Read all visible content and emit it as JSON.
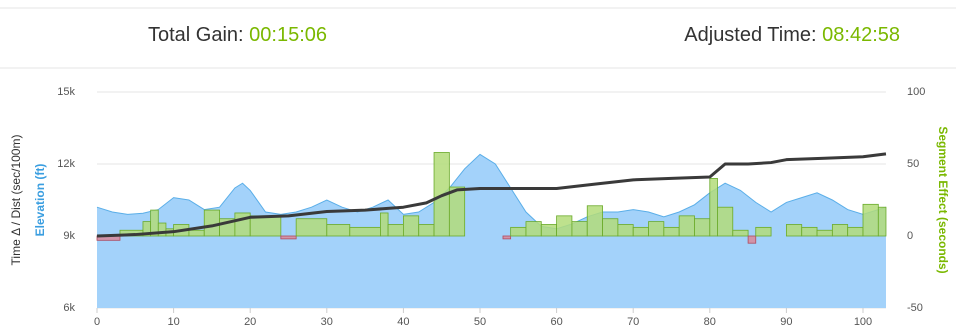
{
  "header": {
    "total_gain_label": "Total Gain:",
    "total_gain": "00:15:06",
    "adjusted_label": "Adjusted Time:",
    "adjusted_time": "08:42:58"
  },
  "chart_data": {
    "type": "combo",
    "y_label_outer": "Time Δ / Dist (sec/100m)",
    "y_label": "Elevation (ft)",
    "y2_label": "Segment Effect (seconds)",
    "xlim": [
      0,
      103
    ],
    "xticks": [
      0,
      10,
      20,
      30,
      40,
      50,
      60,
      70,
      80,
      90,
      100
    ],
    "ylim": [
      6000,
      15000
    ],
    "yticks": [
      {
        "value": 6000,
        "label": "6k"
      },
      {
        "value": 9000,
        "label": "9k"
      },
      {
        "value": 12000,
        "label": "12k"
      },
      {
        "value": 15000,
        "label": "15k"
      }
    ],
    "y2lim": [
      -50,
      100
    ],
    "y2ticks": [
      -50,
      0,
      50,
      100
    ],
    "grid": true,
    "series": [
      {
        "type": "area",
        "color": "#a3d2fa",
        "stroke": "#5aaee8",
        "x": [
          0,
          2,
          4,
          6,
          8,
          10,
          12,
          14,
          16,
          18,
          19,
          20,
          22,
          24,
          26,
          28,
          30,
          32,
          34,
          36,
          38,
          40,
          42,
          44,
          46,
          48,
          50,
          52,
          54,
          56,
          58,
          60,
          62,
          64,
          66,
          68,
          70,
          72,
          74,
          76,
          78,
          80,
          82,
          84,
          86,
          88,
          90,
          92,
          94,
          96,
          98,
          100,
          102,
          103
        ],
        "values": [
          10200,
          10000,
          9900,
          9950,
          10100,
          10600,
          10500,
          10100,
          10200,
          11000,
          11200,
          10900,
          10000,
          9900,
          10000,
          10200,
          10500,
          10200,
          10000,
          10200,
          10500,
          9900,
          10000,
          10400,
          11000,
          11800,
          12400,
          12000,
          11000,
          10000,
          9400,
          9300,
          9500,
          9800,
          10000,
          10000,
          10100,
          10000,
          9800,
          10000,
          10300,
          10800,
          11200,
          10900,
          10400,
          10000,
          10400,
          10600,
          10800,
          10500,
          10100,
          9900,
          10100,
          10200
        ]
      },
      {
        "type": "histogram",
        "axis": "y2",
        "color": "#b3dc79",
        "stroke": "#6aaa2a",
        "negative_color": "#d98a9a",
        "negative_stroke": "#b04a5e",
        "bins": [
          0,
          3,
          6,
          7,
          8,
          9,
          10,
          12,
          14,
          16,
          18,
          20,
          24,
          26,
          30,
          33,
          37,
          38,
          40,
          42,
          44,
          46,
          48,
          53,
          54,
          56,
          58,
          60,
          62,
          64,
          66,
          68,
          70,
          72,
          74,
          76,
          78,
          80,
          81,
          83,
          85,
          86,
          88,
          90,
          92,
          94,
          96,
          98,
          100,
          102,
          103
        ],
        "values": [
          -3,
          4,
          10,
          18,
          9,
          5,
          8,
          4,
          18,
          12,
          16,
          14,
          -2,
          12,
          8,
          6,
          16,
          8,
          14,
          8,
          58,
          34,
          0,
          -2,
          6,
          10,
          8,
          14,
          10,
          21,
          12,
          8,
          6,
          10,
          6,
          14,
          12,
          40,
          20,
          4,
          -5,
          6,
          0,
          8,
          6,
          4,
          8,
          6,
          22,
          20
        ]
      },
      {
        "type": "line",
        "axis": "y2",
        "color": "#3a3a3a",
        "x": [
          0,
          5,
          10,
          15,
          20,
          25,
          30,
          35,
          40,
          43,
          45,
          47,
          50,
          55,
          60,
          65,
          70,
          75,
          80,
          82,
          85,
          88,
          90,
          95,
          100,
          103
        ],
        "values": [
          0,
          1,
          3,
          7,
          13,
          14,
          17,
          18,
          20,
          23,
          28,
          32,
          33,
          33,
          33,
          36,
          39,
          40,
          41,
          50,
          50,
          51,
          53,
          54,
          55,
          57
        ]
      }
    ]
  }
}
